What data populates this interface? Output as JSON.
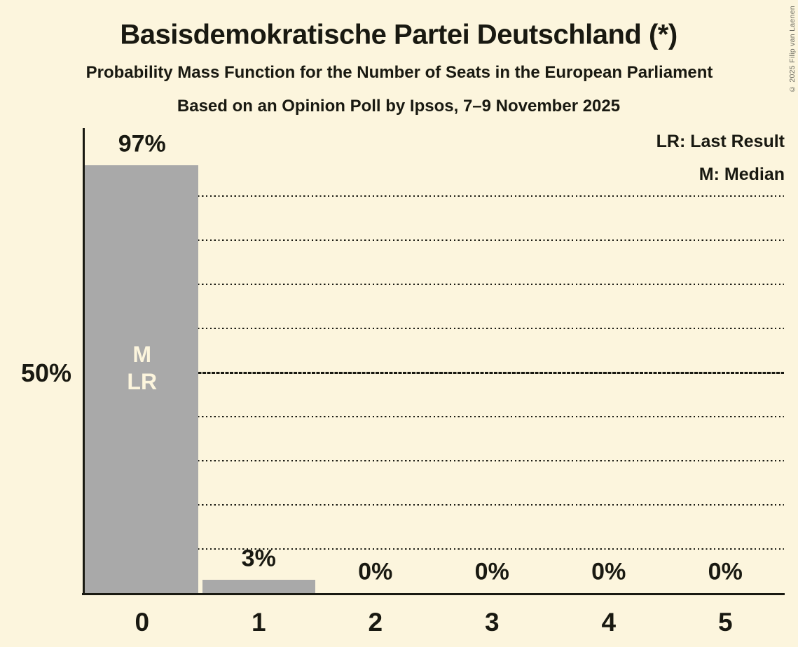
{
  "chart_data": {
    "type": "bar",
    "title": "Basisdemokratische Partei Deutschland (*)",
    "subtitle": "Probability Mass Function for the Number of Seats in the European Parliament",
    "poll_line": "Based on an Opinion Poll by Ipsos, 7–9 November 2025",
    "copyright": "© 2025 Filip van Laenen",
    "legend": {
      "lr": "LR: Last Result",
      "m": "M: Median"
    },
    "categories": [
      "0",
      "1",
      "2",
      "3",
      "4",
      "5"
    ],
    "values": [
      97,
      3,
      0,
      0,
      0,
      0
    ],
    "value_labels": [
      "97%",
      "3%",
      "0%",
      "0%",
      "0%",
      "0%"
    ],
    "y_axis_label": "50%",
    "ylabel": "",
    "xlabel": "",
    "ylim": [
      0,
      105.5
    ],
    "dotted_gridlines_pct": [
      10,
      20,
      30,
      40,
      60,
      70,
      80,
      90
    ],
    "solid_gridline_pct": 50,
    "grid": true,
    "legend_position": "top-right",
    "bar_annotations": [
      {
        "bar_index": 0,
        "lines": [
          "M",
          "LR"
        ]
      }
    ],
    "median_seats": 0,
    "last_result_seats": 0,
    "colors": {
      "background": "#fcf5dd",
      "bar": "#a9a9a9",
      "text": "#191911",
      "bar_label": "#fcf5dd",
      "copyright": "#6b6a60"
    }
  }
}
